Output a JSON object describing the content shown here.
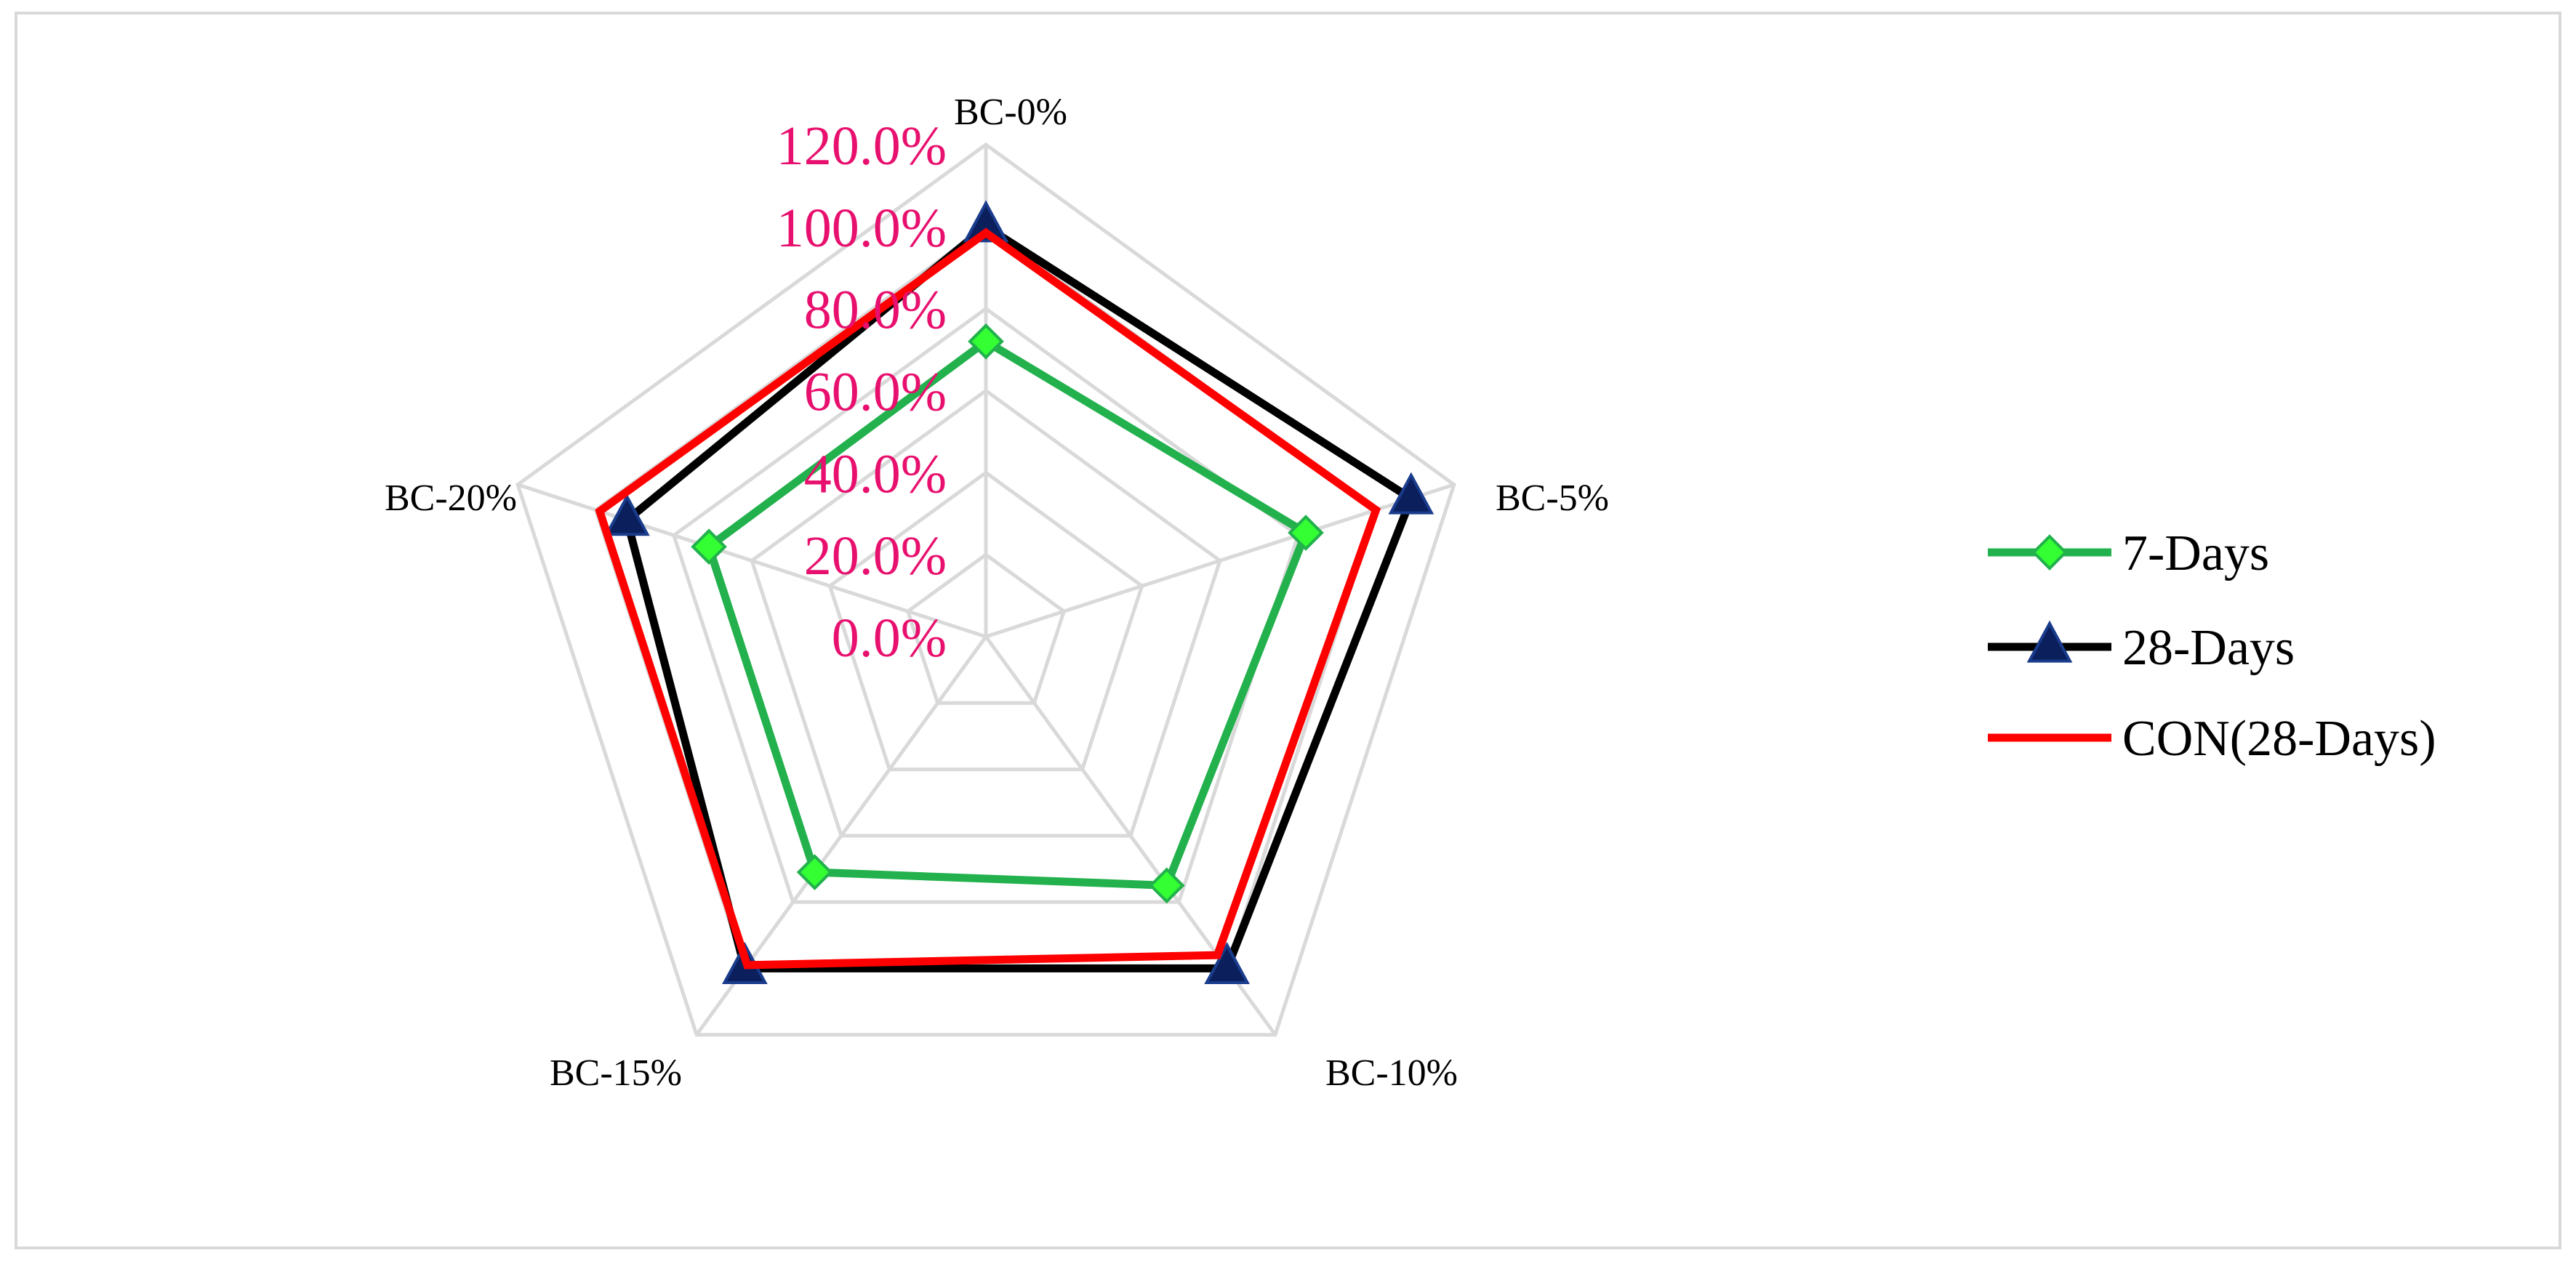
{
  "chart_data": {
    "type": "radar",
    "categories": [
      "BC-0%",
      "BC-5%",
      "BC-10%",
      "BC-15%",
      "BC-20%"
    ],
    "axis": {
      "min": 0,
      "max": 1.2,
      "step": 0.2,
      "tick_labels": [
        "0.0%",
        "20.0%",
        "40.0%",
        "60.0%",
        "80.0%",
        "100.0%",
        "120.0%"
      ],
      "tick_color": "#e8106e"
    },
    "grid": true,
    "grid_color": "#d9d9d9",
    "legend_position": "right",
    "series": [
      {
        "name": "7-Days",
        "values": [
          0.72,
          0.82,
          0.75,
          0.71,
          0.71
        ],
        "color": "#22b14c",
        "marker": "diamond",
        "marker_color": "#33ff33"
      },
      {
        "name": "28-Days",
        "values": [
          1.0,
          1.09,
          1.0,
          1.0,
          0.92
        ],
        "color": "#000000",
        "marker": "triangle",
        "marker_color": "#0a1f5c"
      },
      {
        "name": "CON(28-Days)",
        "values": [
          0.985,
          1.0,
          0.96,
          0.99,
          0.99
        ],
        "color": "#ff0000",
        "marker": "none"
      }
    ]
  }
}
